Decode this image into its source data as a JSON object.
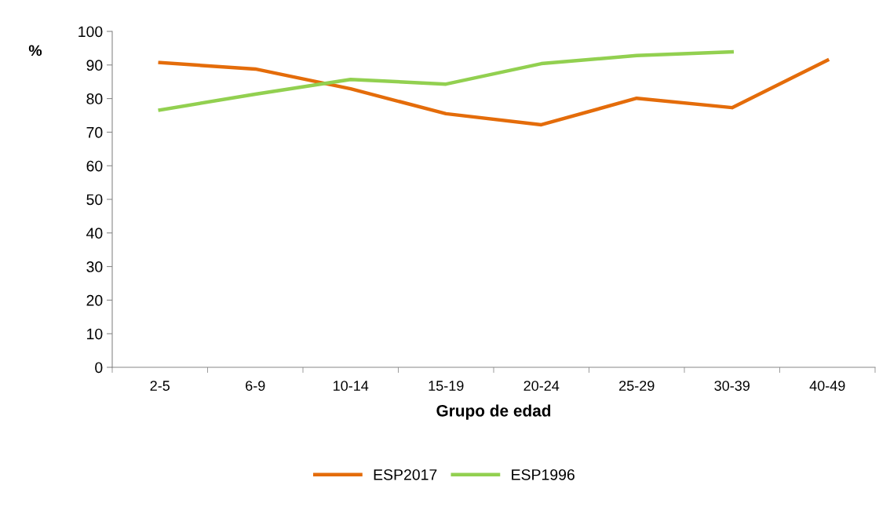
{
  "chart_data": {
    "type": "line",
    "xlabel": "Grupo de edad",
    "ylabel": "%",
    "categories": [
      "2-5",
      "6-9",
      "10-14",
      "15-19",
      "20-24",
      "25-29",
      "30-39",
      "40-49"
    ],
    "series": [
      {
        "name": "ESP2017",
        "color": "#e46c0a",
        "values": [
          90.7,
          88.8,
          82.9,
          75.5,
          72.2,
          80.1,
          77.3,
          91.4
        ]
      },
      {
        "name": "ESP1996",
        "color": "#92d050",
        "values": [
          76.6,
          81.3,
          85.7,
          84.3,
          90.4,
          92.8,
          93.9,
          null
        ]
      }
    ],
    "ylim": [
      0,
      100
    ],
    "yticks": [
      0,
      10,
      20,
      30,
      40,
      50,
      60,
      70,
      80,
      90,
      100
    ],
    "grid": false,
    "legend": "bottom",
    "marker": "none",
    "line_style": "solid"
  }
}
